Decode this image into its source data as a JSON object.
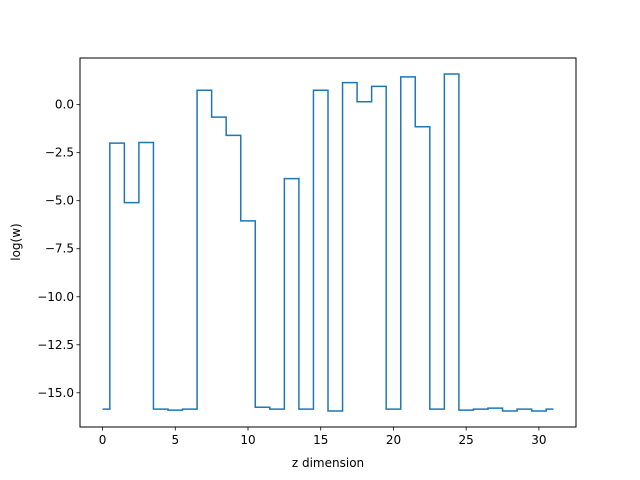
{
  "chart_data": {
    "type": "line",
    "drawstyle": "steps-mid",
    "xlabel": "z dimension",
    "ylabel": "log(w)",
    "xlim": [
      -1.55,
      32.55
    ],
    "ylim": [
      -16.78,
      2.43
    ],
    "xticks": [
      0,
      5,
      10,
      15,
      20,
      25,
      30
    ],
    "yticks": [
      0.0,
      -2.5,
      -5.0,
      -7.5,
      -10.0,
      -12.5,
      -15.0
    ],
    "ytick_labels": [
      "0.0",
      "−2.5",
      "−5.0",
      "−7.5",
      "−10.0",
      "−12.5",
      "−15.0"
    ],
    "grid": false,
    "line_color": "#1f77b4",
    "series": [
      {
        "x": [
          0,
          1,
          2,
          3,
          4,
          5,
          6,
          7,
          8,
          9,
          10,
          11,
          12,
          13,
          14,
          15,
          16,
          17,
          18,
          19,
          20,
          21,
          22,
          23,
          24,
          25,
          26,
          27,
          28,
          29,
          30,
          31
        ],
        "y": [
          -15.85,
          -2.0,
          -5.1,
          -1.97,
          -15.85,
          -15.9,
          -15.85,
          0.75,
          -0.65,
          -1.6,
          -6.05,
          -15.75,
          -15.85,
          -3.85,
          -15.85,
          0.75,
          -15.95,
          1.15,
          0.15,
          0.95,
          -15.85,
          1.45,
          -1.15,
          -15.85,
          1.6,
          -15.9,
          -15.85,
          -15.8,
          -15.95,
          -15.85,
          -15.95,
          -15.85
        ]
      }
    ]
  }
}
